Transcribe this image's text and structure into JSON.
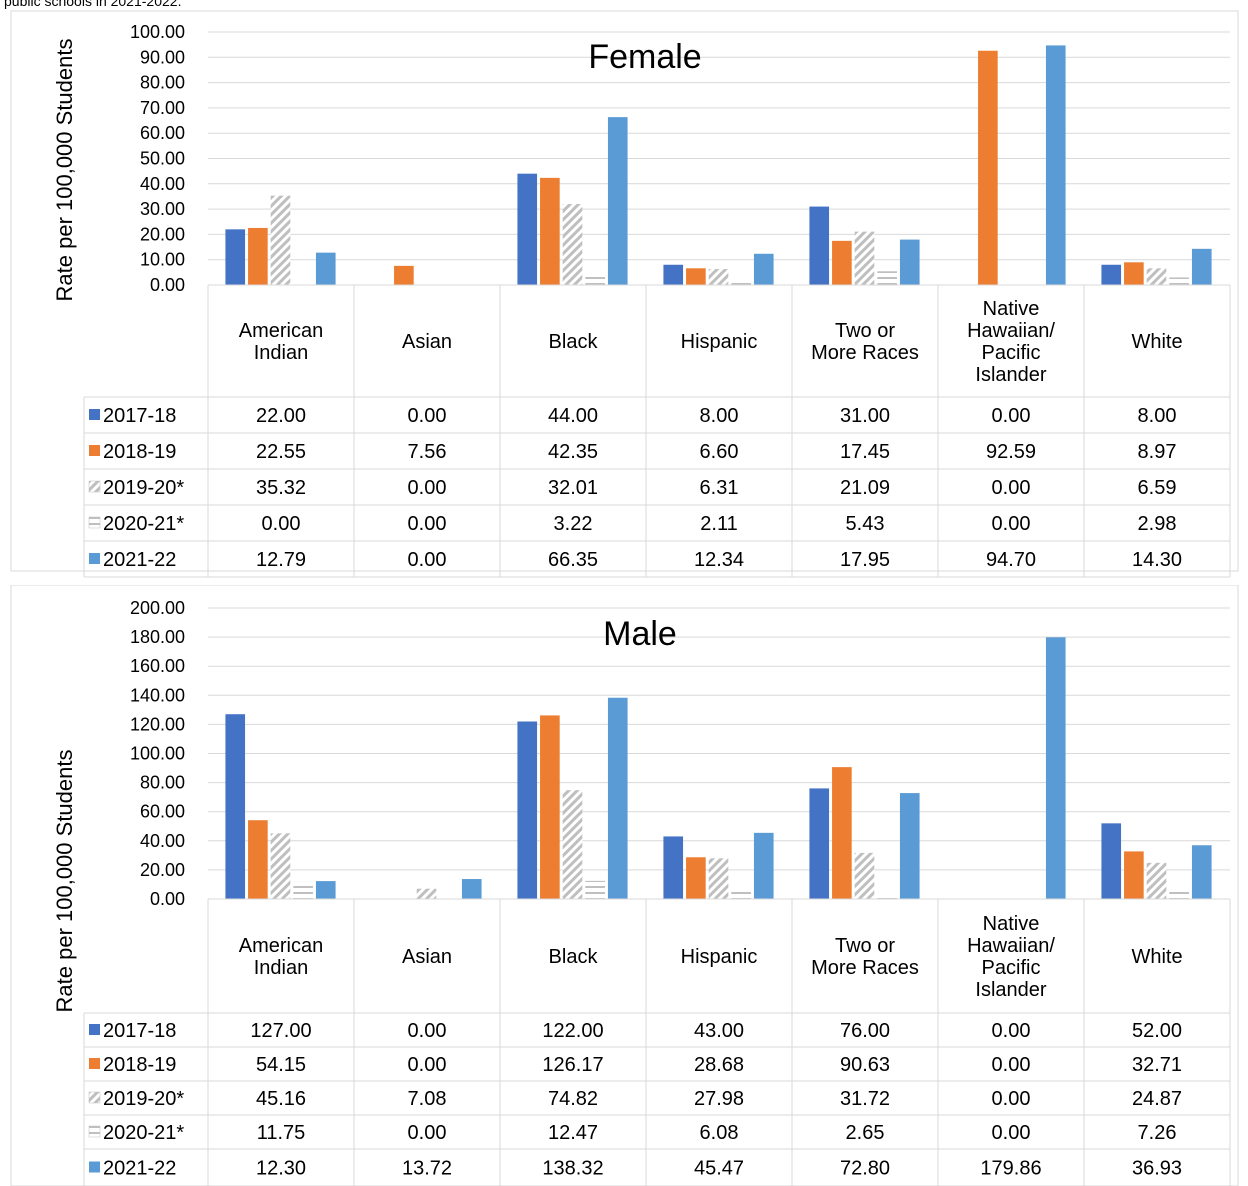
{
  "caption": "public schools in 2021-2022.",
  "series_colors": {
    "2017-18": "#4472c4",
    "2018-19": "#ed7d31",
    "2019-20*": "pattern-diagonal-gray",
    "2020-21*": "pattern-horizontal-gray",
    "2021-22": "#5b9bd5"
  },
  "chart_data": [
    {
      "type": "bar",
      "title": "Female",
      "ylabel": "Rate per 100,000 Students",
      "ylim": [
        0,
        100
      ],
      "yticks": [
        "0.00",
        "10.00",
        "20.00",
        "30.00",
        "40.00",
        "50.00",
        "60.00",
        "70.00",
        "80.00",
        "90.00",
        "100.00"
      ],
      "grid": true,
      "legend": "data-table",
      "categories": [
        "American\nIndian",
        "Asian",
        "Black",
        "Hispanic",
        "Two or\nMore Races",
        "Native\nHawaiian/\nPacific\nIslander",
        "White"
      ],
      "series": [
        {
          "name": "2017-18",
          "values": [
            22.0,
            0.0,
            44.0,
            8.0,
            31.0,
            0.0,
            8.0
          ],
          "labels": [
            "22.00",
            "0.00",
            "44.00",
            "8.00",
            "31.00",
            "0.00",
            "8.00"
          ]
        },
        {
          "name": "2018-19",
          "values": [
            22.55,
            7.56,
            42.35,
            6.6,
            17.45,
            92.59,
            8.97
          ],
          "labels": [
            "22.55",
            "7.56",
            "42.35",
            "6.60",
            "17.45",
            "92.59",
            "8.97"
          ]
        },
        {
          "name": "2019-20*",
          "values": [
            35.32,
            0.0,
            32.01,
            6.31,
            21.09,
            0.0,
            6.59
          ],
          "labels": [
            "35.32",
            "0.00",
            "32.01",
            "6.31",
            "21.09",
            "0.00",
            "6.59"
          ]
        },
        {
          "name": "2020-21*",
          "values": [
            0.0,
            0.0,
            3.22,
            2.11,
            5.43,
            0.0,
            2.98
          ],
          "labels": [
            "0.00",
            "0.00",
            "3.22",
            "2.11",
            "5.43",
            "0.00",
            "2.98"
          ]
        },
        {
          "name": "2021-22",
          "values": [
            12.79,
            0.0,
            66.35,
            12.34,
            17.95,
            94.7,
            14.3
          ],
          "labels": [
            "12.79",
            "0.00",
            "66.35",
            "12.34",
            "17.95",
            "94.70",
            "14.30"
          ]
        }
      ]
    },
    {
      "type": "bar",
      "title": "Male",
      "ylabel": "Rate per 100,000 Students",
      "ylim": [
        0,
        200
      ],
      "yticks": [
        "0.00",
        "20.00",
        "40.00",
        "60.00",
        "80.00",
        "100.00",
        "120.00",
        "140.00",
        "160.00",
        "180.00",
        "200.00"
      ],
      "grid": true,
      "legend": "data-table",
      "categories": [
        "American\nIndian",
        "Asian",
        "Black",
        "Hispanic",
        "Two or\nMore Races",
        "Native\nHawaiian/\nPacific\nIslander",
        "White"
      ],
      "series": [
        {
          "name": "2017-18",
          "values": [
            127.0,
            0.0,
            122.0,
            43.0,
            76.0,
            0.0,
            52.0
          ],
          "labels": [
            "127.00",
            "0.00",
            "122.00",
            "43.00",
            "76.00",
            "0.00",
            "52.00"
          ]
        },
        {
          "name": "2018-19",
          "values": [
            54.15,
            0.0,
            126.17,
            28.68,
            90.63,
            0.0,
            32.71
          ],
          "labels": [
            "54.15",
            "0.00",
            "126.17",
            "28.68",
            "90.63",
            "0.00",
            "32.71"
          ]
        },
        {
          "name": "2019-20*",
          "values": [
            45.16,
            7.08,
            74.82,
            27.98,
            31.72,
            0.0,
            24.87
          ],
          "labels": [
            "45.16",
            "7.08",
            "74.82",
            "27.98",
            "31.72",
            "0.00",
            "24.87"
          ]
        },
        {
          "name": "2020-21*",
          "values": [
            11.75,
            0.0,
            12.47,
            6.08,
            2.65,
            0.0,
            7.26
          ],
          "labels": [
            "11.75",
            "0.00",
            "12.47",
            "6.08",
            "2.65",
            "0.00",
            "7.26"
          ]
        },
        {
          "name": "2021-22",
          "values": [
            12.3,
            13.72,
            138.32,
            45.47,
            72.8,
            179.86,
            36.93
          ],
          "labels": [
            "12.30",
            "13.72",
            "138.32",
            "45.47",
            "72.80",
            "179.86",
            "36.93"
          ]
        }
      ]
    }
  ]
}
